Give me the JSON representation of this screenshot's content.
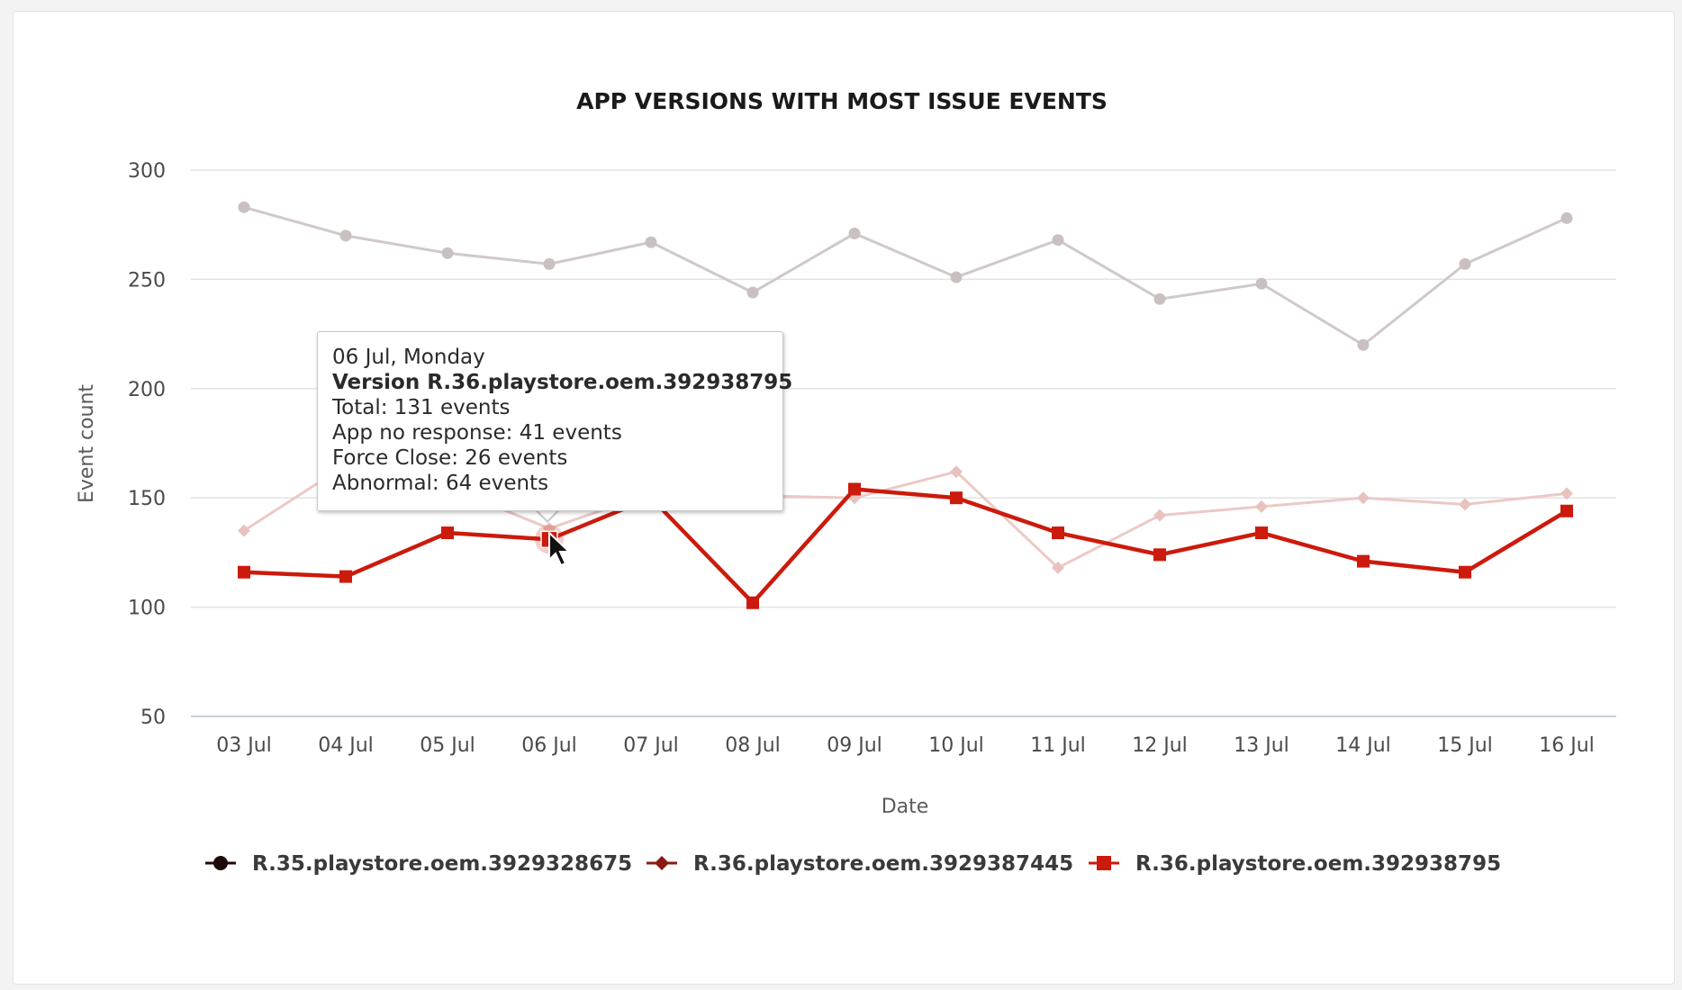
{
  "chart_data": {
    "type": "line",
    "title": "APP VERSIONS WITH MOST ISSUE EVENTS",
    "xlabel": "Date",
    "ylabel": "Event count",
    "ylim": [
      50,
      300
    ],
    "yticks": [
      "50",
      "100",
      "150",
      "200",
      "250",
      "300"
    ],
    "categories": [
      "03 Jul",
      "04 Jul",
      "05 Jul",
      "06 Jul",
      "07 Jul",
      "08 Jul",
      "09 Jul",
      "10 Jul",
      "11 Jul",
      "12 Jul",
      "13 Jul",
      "14 Jul",
      "15 Jul",
      "16 Jul"
    ],
    "grid": true,
    "legend_position": "bottom",
    "series": [
      {
        "name": "R.35.playstore.oem.3929328675",
        "color": "#1f0a0a",
        "marker": "circle",
        "highlighted": false,
        "values": [
          283,
          270,
          262,
          257,
          267,
          244,
          271,
          251,
          268,
          241,
          248,
          220,
          257,
          278
        ]
      },
      {
        "name": "R.36.playstore.oem.3929387445",
        "color": "#8b1a10",
        "marker": "diamond",
        "highlighted": false,
        "values": [
          135,
          165,
          155,
          136,
          152,
          151,
          150,
          162,
          118,
          142,
          146,
          150,
          147,
          152
        ]
      },
      {
        "name": "R.36.playstore.oem.392938795",
        "color": "#cc1a0c",
        "marker": "square",
        "highlighted": true,
        "values": [
          116,
          114,
          134,
          131,
          150,
          102,
          154,
          150,
          134,
          124,
          134,
          121,
          116,
          144
        ]
      }
    ]
  },
  "tooltip": {
    "date_line": "06 Jul, Monday",
    "version_line": "Version R.36.playstore.oem.392938795",
    "total_line": "Total: 131 events",
    "no_response_line": "App no response: 41 events",
    "force_close_line": "Force Close: 26 events",
    "abnormal_line": "Abnormal: 64 events"
  }
}
